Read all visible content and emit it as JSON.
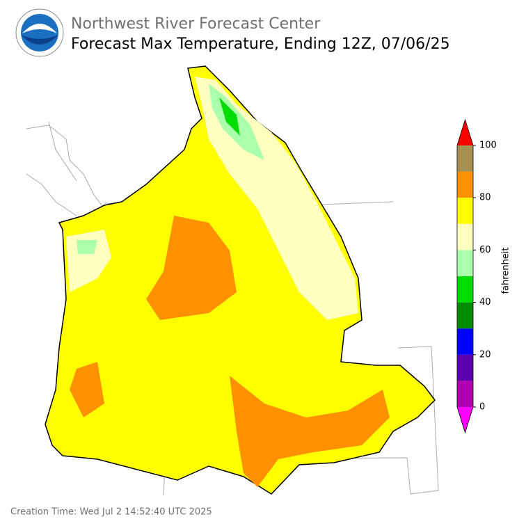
{
  "header": {
    "title": "Northwest River Forecast Center",
    "subtitle": "Forecast Max Temperature, Ending 12Z, 07/06/25"
  },
  "colorbar": {
    "label": "fahrenheit",
    "range": [
      0,
      100
    ],
    "ticks": [
      0,
      20,
      40,
      60,
      80,
      100
    ],
    "bins": [
      0,
      10,
      20,
      30,
      40,
      50,
      60,
      70,
      80,
      90,
      100
    ],
    "colors": [
      "#b000b0",
      "#5a00b0",
      "#0000ff",
      "#008c00",
      "#00dd00",
      "#aaffaa",
      "#ffffc0",
      "#ffff00",
      "#ff9000",
      "#a89050"
    ],
    "under_color": "#ff00ff",
    "over_color": "#ff0000"
  },
  "footer": {
    "creation_time": "Creation Time: Wed Jul 2 14:52:40 UTC 2025"
  }
}
